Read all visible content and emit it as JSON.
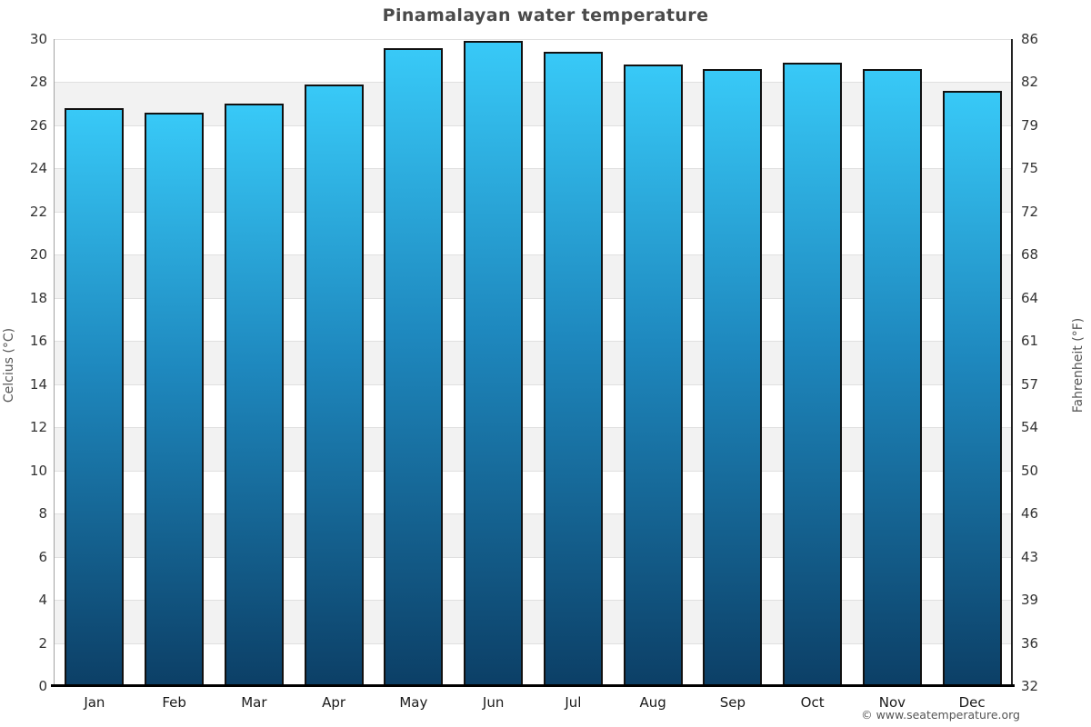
{
  "page": {
    "copyright": "© www.seatemperature.org"
  },
  "chart_data": {
    "type": "bar",
    "title": "Pinamalayan water temperature",
    "categories": [
      "Jan",
      "Feb",
      "Mar",
      "Apr",
      "May",
      "Jun",
      "Jul",
      "Aug",
      "Sep",
      "Oct",
      "Nov",
      "Dec"
    ],
    "values": [
      26.8,
      26.6,
      27.0,
      27.9,
      29.6,
      29.9,
      29.4,
      28.8,
      28.6,
      28.9,
      28.6,
      27.6
    ],
    "series_name": "Water temperature",
    "ylabel_left": "Celcius (°C)",
    "ylabel_right": "Fahrenheit (°F)",
    "ylim": [
      0,
      30
    ],
    "ytick_step_celsius": 2,
    "yticks_celsius": [
      30,
      28,
      26,
      24,
      22,
      20,
      18,
      16,
      14,
      12,
      10,
      8,
      6,
      4,
      2,
      0
    ],
    "yticks_fahrenheit": [
      86,
      82,
      79,
      75,
      72,
      68,
      64,
      61,
      57,
      54,
      50,
      46,
      43,
      39,
      36,
      32
    ],
    "grid": "horizontal-bands-alternating",
    "legend": "none",
    "colors": {
      "bar_gradient_top": "#38c9f7",
      "bar_gradient_mid": "#1e88be",
      "bar_gradient_bottom": "#0c3f66",
      "bar_border": "#111111",
      "band_gray": "#f2f2f2",
      "band_white": "#ffffff",
      "gridline": "#e0e0e0",
      "axis_left": "#a3a3a3",
      "axis_right": "#222222",
      "axis_bottom": "#000000",
      "title_text": "#4a4a4a",
      "tick_text": "#333333",
      "muted_text": "#555555"
    }
  }
}
